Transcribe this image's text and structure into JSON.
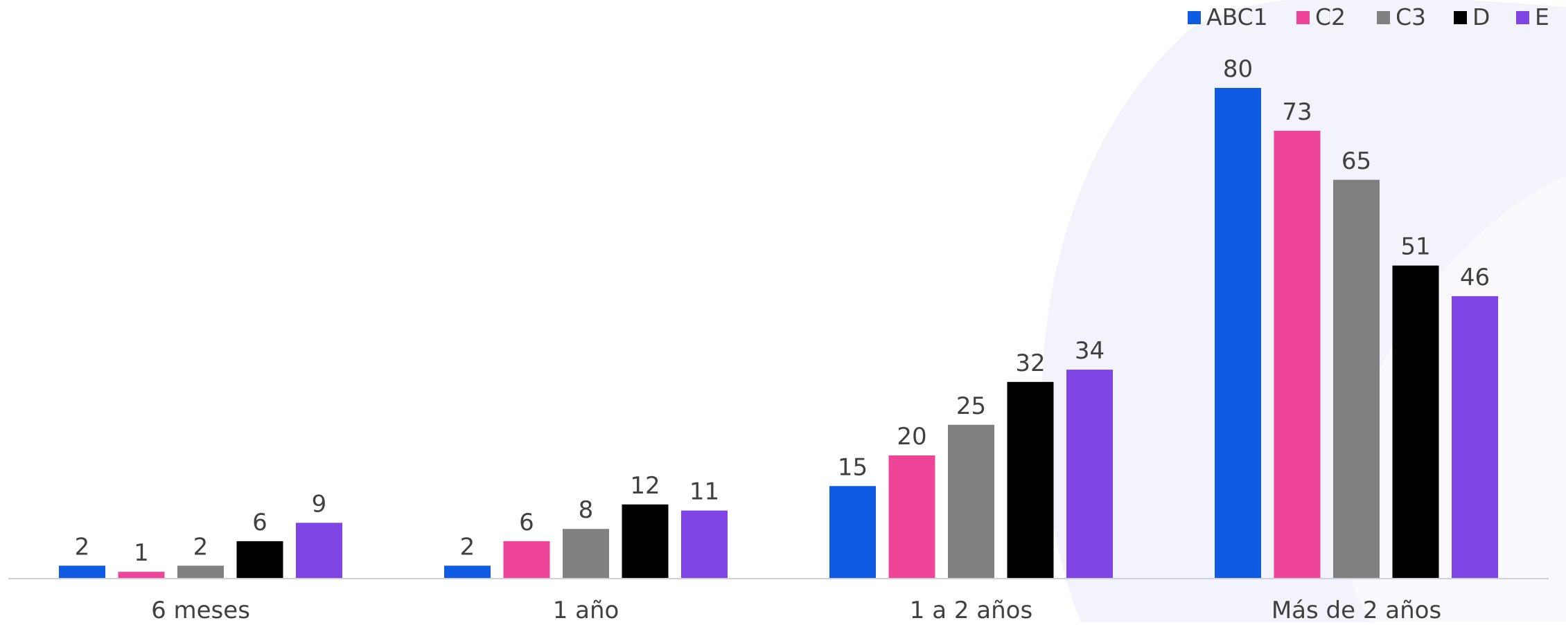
{
  "chart_data": {
    "type": "bar",
    "categories": [
      "6 meses",
      "1 año",
      "1 a 2 años",
      "Más de 2 años"
    ],
    "series": [
      {
        "name": "ABC1",
        "color": "#0f5be3",
        "values": [
          2,
          2,
          15,
          80
        ]
      },
      {
        "name": "C2",
        "color": "#ee4598",
        "values": [
          1,
          6,
          20,
          73
        ]
      },
      {
        "name": "C3",
        "color": "#808080",
        "values": [
          2,
          8,
          25,
          65
        ]
      },
      {
        "name": "D",
        "color": "#000000",
        "values": [
          6,
          12,
          32,
          51
        ]
      },
      {
        "name": "E",
        "color": "#7f45e4",
        "values": [
          9,
          11,
          34,
          46
        ]
      }
    ],
    "ylim": [
      0,
      80
    ],
    "legend_position": "top-right",
    "grid": false,
    "data_labels": true
  }
}
